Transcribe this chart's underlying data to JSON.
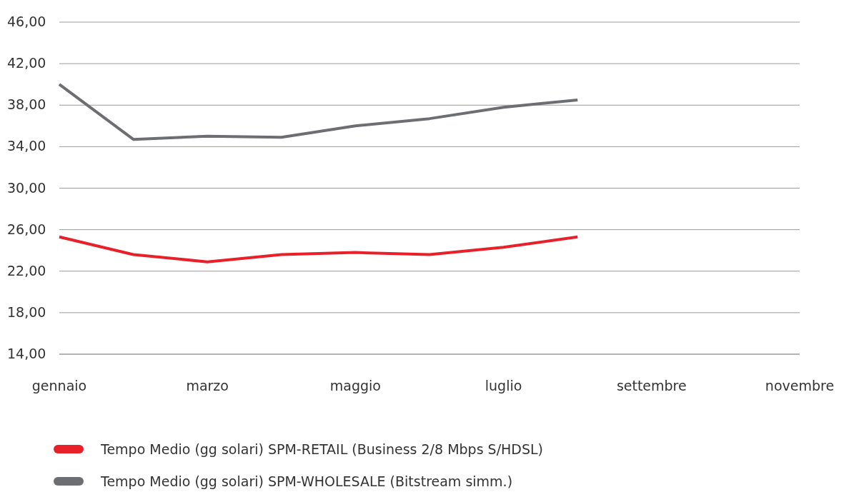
{
  "chart_data": {
    "type": "line",
    "categories": [
      "gennaio",
      null,
      "marzo",
      null,
      "maggio",
      null,
      "luglio",
      null,
      "settembre",
      null,
      "novembre"
    ],
    "series": [
      {
        "name": "Tempo Medio (gg solari) SPM-RETAIL (Business 2/8 Mbps S/HDSL)",
        "color": "#e8202a",
        "values": [
          25.3,
          23.6,
          22.9,
          23.6,
          23.8,
          23.6,
          24.3,
          25.3,
          null,
          null,
          null
        ]
      },
      {
        "name": "Tempo Medio (gg solari) SPM-WHOLESALE (Bitstream simm.)",
        "color": "#6d6e71",
        "values": [
          40.0,
          34.7,
          35.0,
          34.9,
          36.0,
          36.7,
          37.8,
          38.5,
          null,
          null,
          null
        ]
      }
    ],
    "ylim": [
      14,
      46
    ],
    "yticks": [
      {
        "value": 14,
        "label": "14,00"
      },
      {
        "value": 18,
        "label": "18,00"
      },
      {
        "value": 22,
        "label": "22,00"
      },
      {
        "value": 26,
        "label": "26,00"
      },
      {
        "value": 30,
        "label": "30,00"
      },
      {
        "value": 34,
        "label": "34,00"
      },
      {
        "value": 38,
        "label": "38,00"
      },
      {
        "value": 42,
        "label": "42,00"
      },
      {
        "value": 46,
        "label": "46,00"
      }
    ],
    "grid": "y",
    "legend": "bottom",
    "marker": "none",
    "line_style": "solid"
  }
}
